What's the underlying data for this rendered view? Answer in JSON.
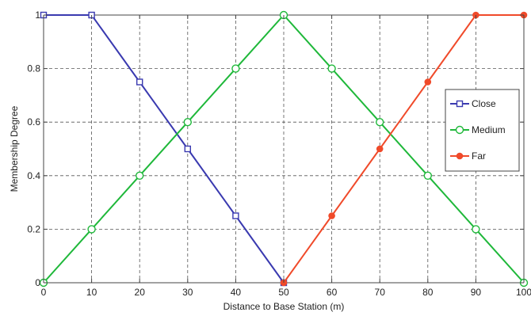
{
  "chart_data": {
    "type": "line",
    "title": "",
    "xlabel": "Distance to Base Station (m)",
    "ylabel": "Membership Degree",
    "xlim": [
      0,
      100
    ],
    "ylim": [
      0,
      1
    ],
    "xticks": [
      0,
      10,
      20,
      30,
      40,
      50,
      60,
      70,
      80,
      90,
      100
    ],
    "yticks": [
      0,
      0.2,
      0.4,
      0.6,
      0.8,
      1
    ],
    "xtick_labels": [
      "0",
      "10",
      "20",
      "30",
      "40",
      "50",
      "60",
      "70",
      "80",
      "90",
      "100"
    ],
    "ytick_labels": [
      "0",
      "0.2",
      "0.4",
      "0.6",
      "0.8",
      "1"
    ],
    "grid": true,
    "legend_position": "right",
    "series": [
      {
        "name": "Close",
        "color": "#3a3ab0",
        "marker": "square",
        "x": [
          0,
          10,
          20,
          30,
          40,
          50
        ],
        "y": [
          1,
          1,
          0.75,
          0.5,
          0.25,
          0
        ]
      },
      {
        "name": "Medium",
        "color": "#1fb83a",
        "marker": "circle",
        "x": [
          0,
          10,
          20,
          30,
          40,
          50,
          60,
          70,
          80,
          90,
          100
        ],
        "y": [
          0,
          0.2,
          0.4,
          0.6,
          0.8,
          1,
          0.8,
          0.6,
          0.4,
          0.2,
          0
        ]
      },
      {
        "name": "Far",
        "color": "#f04a2a",
        "marker": "dot",
        "x": [
          50,
          60,
          70,
          80,
          90,
          100
        ],
        "y": [
          0,
          0.25,
          0.5,
          0.75,
          1,
          1
        ]
      }
    ]
  }
}
